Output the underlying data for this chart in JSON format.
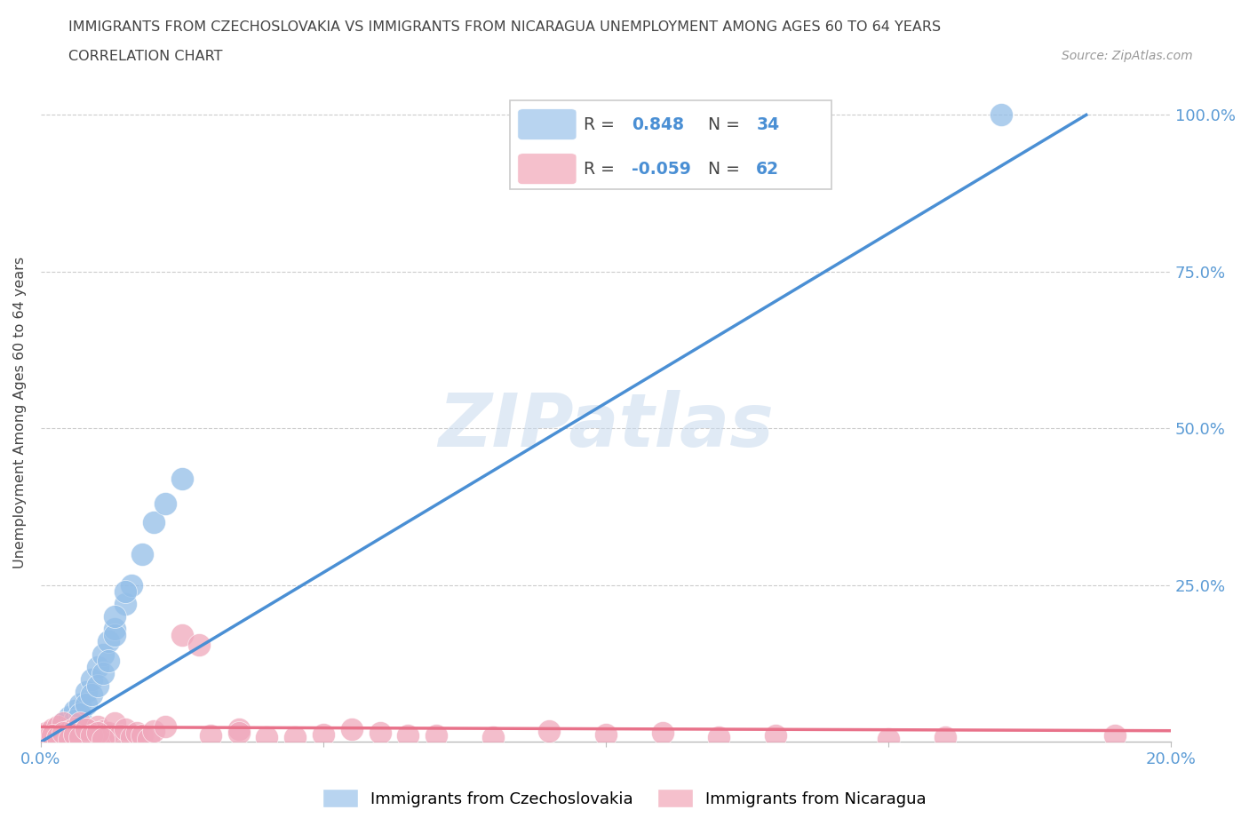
{
  "title_line1": "IMMIGRANTS FROM CZECHOSLOVAKIA VS IMMIGRANTS FROM NICARAGUA UNEMPLOYMENT AMONG AGES 60 TO 64 YEARS",
  "title_line2": "CORRELATION CHART",
  "source_text": "Source: ZipAtlas.com",
  "ylabel": "Unemployment Among Ages 60 to 64 years",
  "xlim": [
    0.0,
    0.2
  ],
  "ylim": [
    0.0,
    1.05
  ],
  "x_ticks": [
    0.0,
    0.05,
    0.1,
    0.15,
    0.2
  ],
  "x_tick_labels": [
    "0.0%",
    "",
    "",
    "",
    "20.0%"
  ],
  "y_ticks": [
    0.0,
    0.25,
    0.5,
    0.75,
    1.0
  ],
  "y_tick_labels_right": [
    "",
    "25.0%",
    "50.0%",
    "75.0%",
    "100.0%"
  ],
  "czech_R": "0.848",
  "czech_N": "34",
  "nic_R": "-0.059",
  "nic_N": "62",
  "watermark": "ZIPatlas",
  "blue_scatter_color": "#93BEE8",
  "pink_scatter_color": "#F0A8BC",
  "blue_line_color": "#4A8FD4",
  "pink_line_color": "#E8728A",
  "legend_blue_fill": "#B8D4F0",
  "legend_pink_fill": "#F5C0CC",
  "grid_color": "#CCCCCC",
  "tick_label_color": "#5B9BD5",
  "title_color": "#444444",
  "source_color": "#999999",
  "ylabel_color": "#444444",
  "blue_line_x0": 0.0,
  "blue_line_y0": 0.0,
  "blue_line_x1": 0.185,
  "blue_line_y1": 1.0,
  "pink_line_x0": 0.0,
  "pink_line_y0": 0.024,
  "pink_line_x1": 0.2,
  "pink_line_y1": 0.018,
  "czech_x": [
    0.001,
    0.002,
    0.003,
    0.004,
    0.005,
    0.006,
    0.007,
    0.008,
    0.009,
    0.01,
    0.011,
    0.012,
    0.013,
    0.015,
    0.016,
    0.018,
    0.02,
    0.022,
    0.025,
    0.003,
    0.004,
    0.005,
    0.006,
    0.007,
    0.008,
    0.009,
    0.01,
    0.011,
    0.012,
    0.013,
    0.015,
    0.13,
    0.17,
    0.013
  ],
  "czech_y": [
    0.005,
    0.01,
    0.02,
    0.03,
    0.04,
    0.05,
    0.06,
    0.08,
    0.1,
    0.12,
    0.14,
    0.16,
    0.18,
    0.22,
    0.25,
    0.3,
    0.35,
    0.38,
    0.42,
    0.01,
    0.015,
    0.025,
    0.035,
    0.045,
    0.06,
    0.075,
    0.09,
    0.11,
    0.13,
    0.17,
    0.24,
    0.98,
    1.0,
    0.2
  ],
  "nic_x": [
    0.001,
    0.001,
    0.002,
    0.002,
    0.003,
    0.003,
    0.004,
    0.004,
    0.005,
    0.005,
    0.006,
    0.006,
    0.007,
    0.007,
    0.008,
    0.008,
    0.009,
    0.01,
    0.01,
    0.011,
    0.012,
    0.013,
    0.014,
    0.015,
    0.016,
    0.017,
    0.018,
    0.019,
    0.02,
    0.022,
    0.025,
    0.028,
    0.03,
    0.035,
    0.04,
    0.05,
    0.06,
    0.07,
    0.08,
    0.09,
    0.1,
    0.11,
    0.12,
    0.13,
    0.035,
    0.045,
    0.055,
    0.065,
    0.001,
    0.002,
    0.003,
    0.004,
    0.005,
    0.006,
    0.007,
    0.008,
    0.009,
    0.01,
    0.011,
    0.19,
    0.15,
    0.16
  ],
  "nic_y": [
    0.005,
    0.015,
    0.008,
    0.02,
    0.01,
    0.025,
    0.012,
    0.03,
    0.008,
    0.018,
    0.01,
    0.022,
    0.015,
    0.03,
    0.01,
    0.02,
    0.012,
    0.008,
    0.025,
    0.018,
    0.015,
    0.03,
    0.01,
    0.02,
    0.008,
    0.015,
    0.01,
    0.005,
    0.018,
    0.025,
    0.17,
    0.155,
    0.01,
    0.02,
    0.008,
    0.012,
    0.015,
    0.01,
    0.008,
    0.018,
    0.012,
    0.015,
    0.008,
    0.01,
    0.015,
    0.008,
    0.02,
    0.01,
    0.005,
    0.01,
    0.008,
    0.015,
    0.005,
    0.012,
    0.008,
    0.02,
    0.01,
    0.015,
    0.005,
    0.01,
    0.005,
    0.008
  ]
}
